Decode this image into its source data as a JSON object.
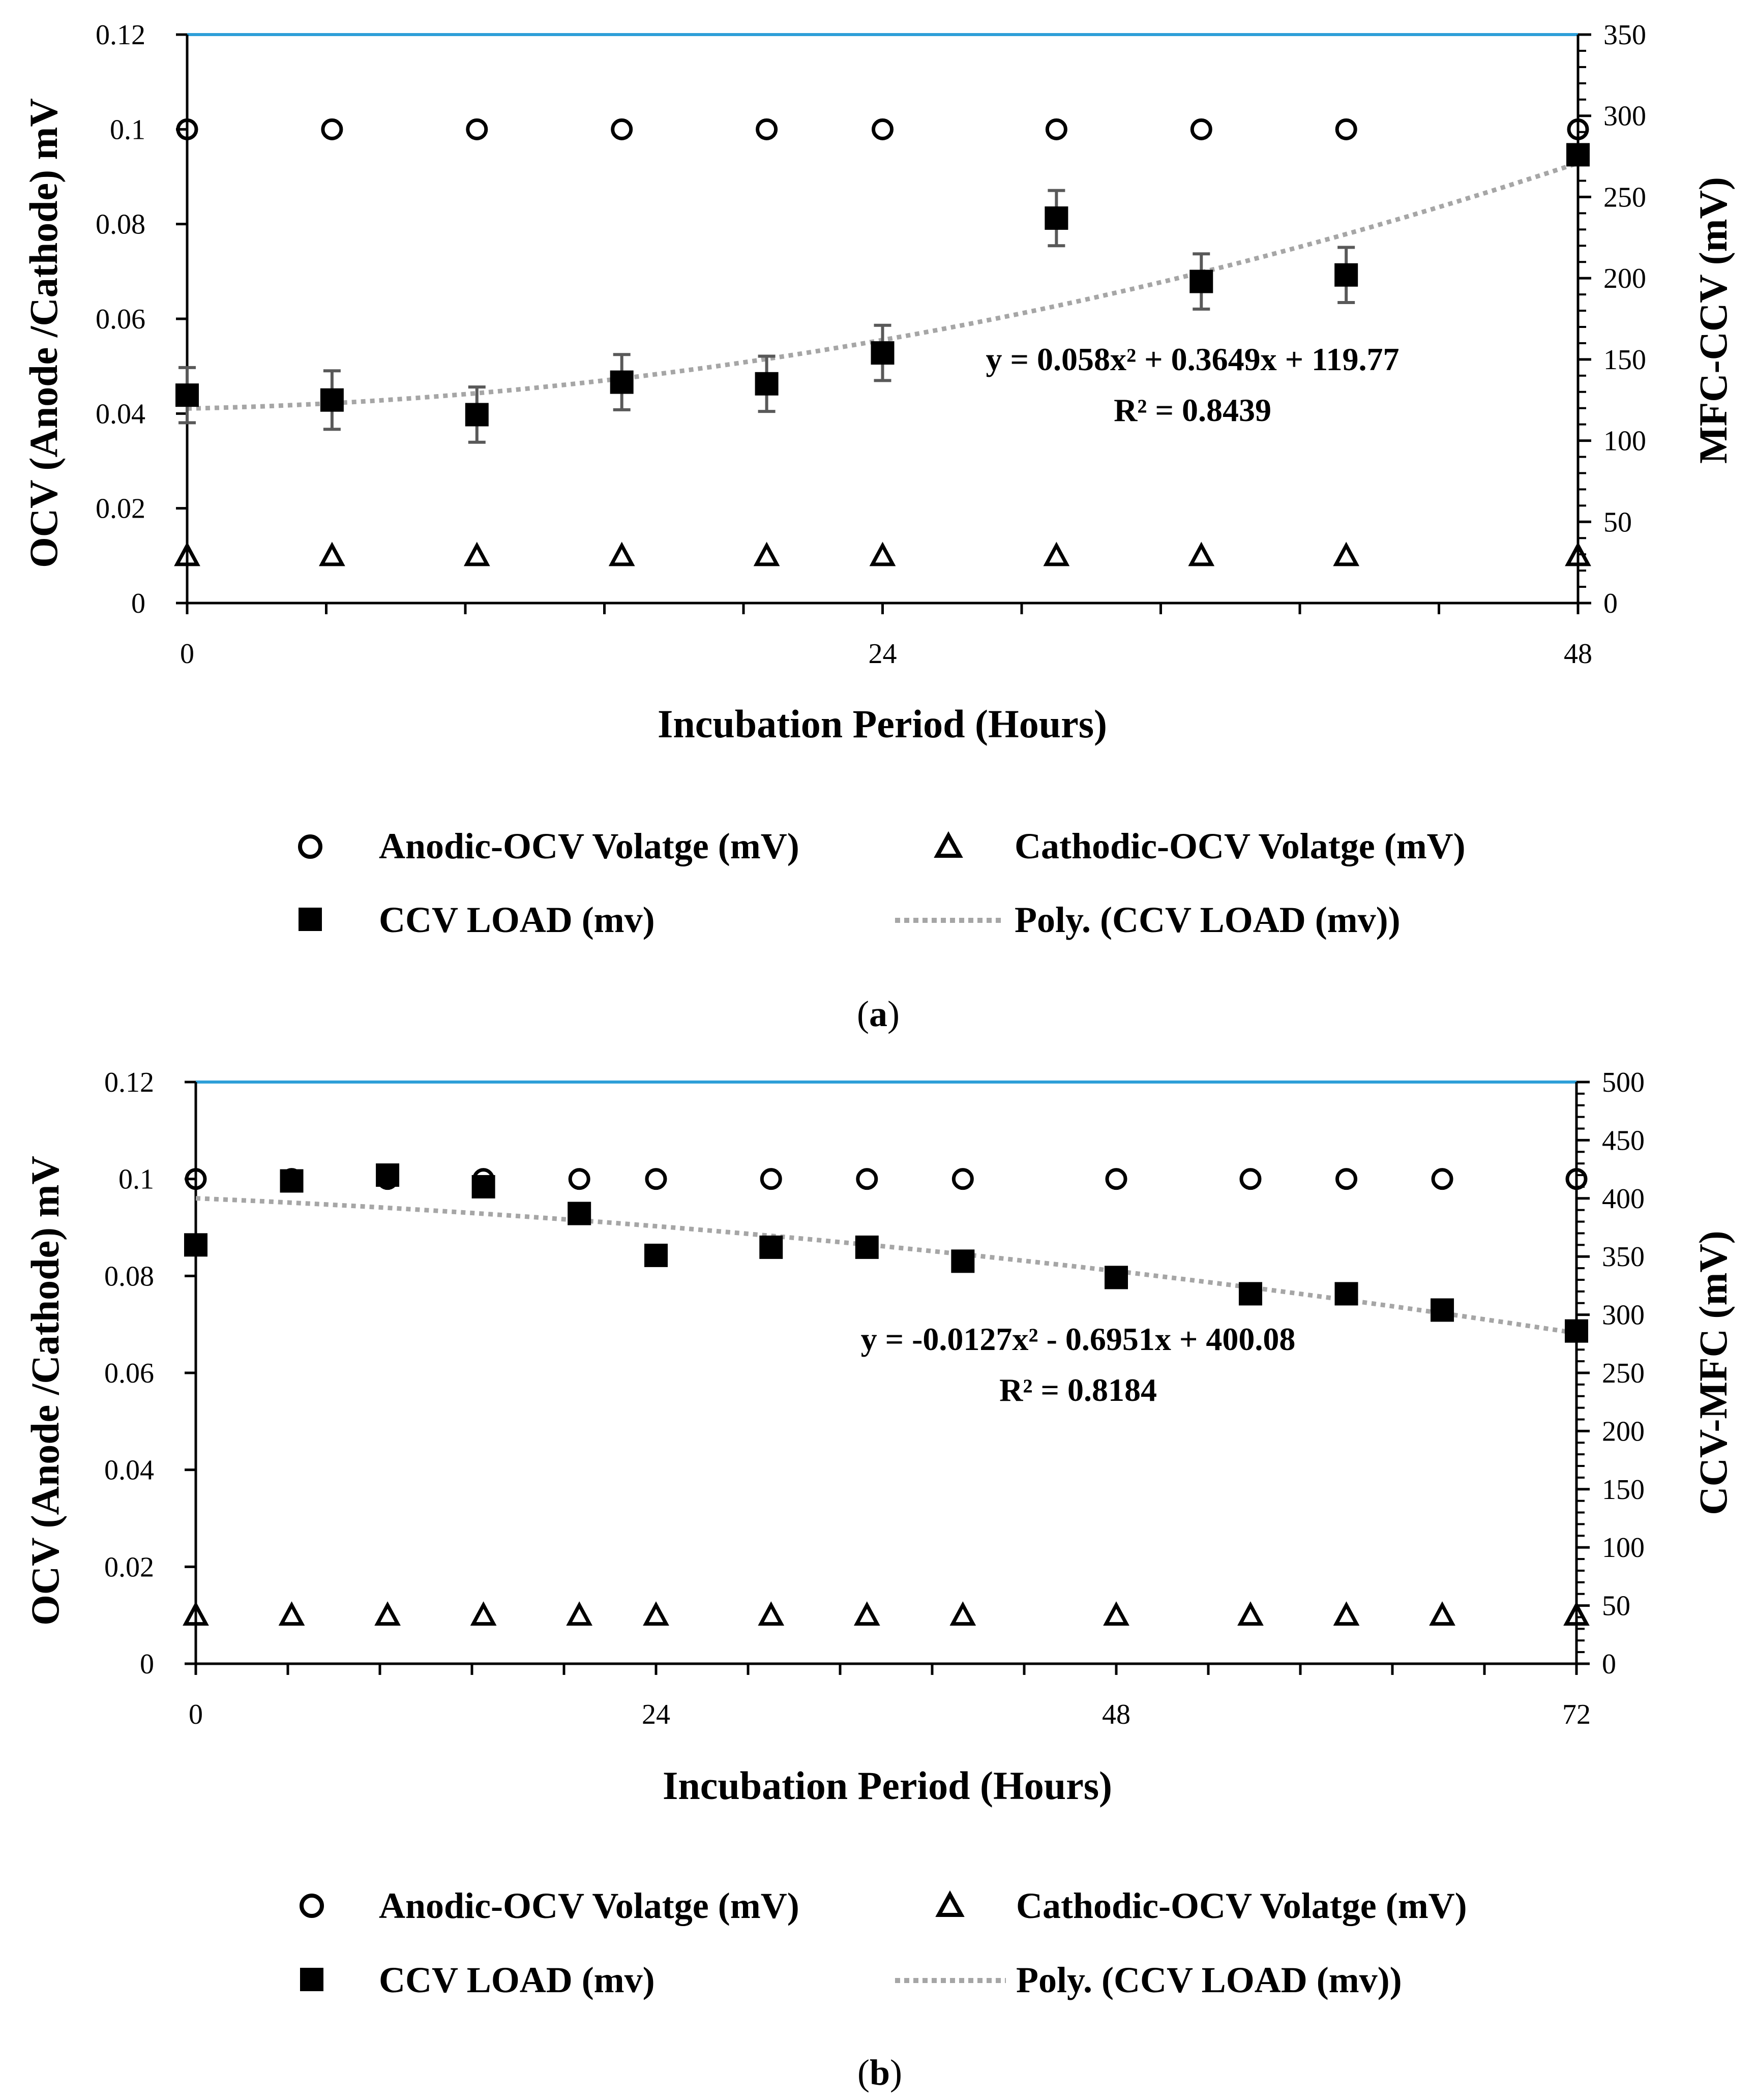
{
  "chart_data": [
    {
      "type": "scatter",
      "panel_label": "a",
      "xlabel": "Incubation Period (Hours)",
      "ylabel": "OCV (Anode /Cathode) mV",
      "y2label": "MFC-CCV (mV)",
      "xlim": [
        0,
        48
      ],
      "x_ticks": [
        0,
        24,
        48
      ],
      "ylim": [
        0,
        0.12
      ],
      "y_ticks": [
        0,
        0.02,
        0.04,
        0.06,
        0.08,
        0.1,
        0.12
      ],
      "y2lim": [
        0,
        350
      ],
      "y2_ticks": [
        0,
        50,
        100,
        150,
        200,
        250,
        300,
        350
      ],
      "x_minor_step": 4.8,
      "y2_minor_step": 10,
      "top_line_color": "#2E9FD8",
      "series": [
        {
          "name": "Anodic-OCV Volatge (mV)",
          "marker": "circle",
          "axis": "left",
          "x": [
            0,
            5,
            10,
            15,
            20,
            24,
            30,
            35,
            40,
            48
          ],
          "values": [
            0.1,
            0.1,
            0.1,
            0.1,
            0.1,
            0.1,
            0.1,
            0.1,
            0.1,
            0.1
          ]
        },
        {
          "name": "Cathodic-OCV Volatge (mV)",
          "marker": "triangle",
          "axis": "left",
          "x": [
            0,
            5,
            10,
            15,
            20,
            24,
            30,
            35,
            40,
            48
          ],
          "values": [
            0.01,
            0.01,
            0.01,
            0.01,
            0.01,
            0.01,
            0.01,
            0.01,
            0.01,
            0.01
          ]
        },
        {
          "name": "CCV LOAD (mv)",
          "marker": "square",
          "axis": "right",
          "x": [
            0,
            5,
            10,
            15,
            20,
            24,
            30,
            35,
            40,
            48
          ],
          "values": [
            128,
            125,
            116,
            136,
            135,
            154,
            237,
            198,
            202,
            276
          ],
          "errors": [
            17,
            18,
            17,
            17,
            17,
            17,
            17,
            17,
            17,
            0
          ]
        }
      ],
      "trendline": {
        "name": "Poly. (CCV LOAD (mv))",
        "axis": "right",
        "coefficients": [
          0.058,
          0.3649,
          119.77
        ],
        "equation": "y = 0.058x² + 0.3649x + 119.77",
        "r2": "R² = 0.8439",
        "color": "#A6A6A6"
      }
    },
    {
      "type": "scatter",
      "panel_label": "b",
      "xlabel": "Incubation Period (Hours)",
      "ylabel": "OCV (Anode /Cathode) mV",
      "y2label": "CCV-MFC (mV)",
      "xlim": [
        0,
        72
      ],
      "x_ticks": [
        0,
        24,
        48,
        72
      ],
      "ylim": [
        0,
        0.12
      ],
      "y_ticks": [
        0,
        0.02,
        0.04,
        0.06,
        0.08,
        0.1,
        0.12
      ],
      "y2lim": [
        0,
        500
      ],
      "y2_ticks": [
        0,
        50,
        100,
        150,
        200,
        250,
        300,
        350,
        400,
        450,
        500
      ],
      "x_minor_step": 4.8,
      "y2_minor_step": 10,
      "top_line_color": "#2E9FD8",
      "series": [
        {
          "name": "Anodic-OCV Volatge (mV)",
          "marker": "circle",
          "axis": "left",
          "x": [
            0,
            5,
            10,
            15,
            20,
            24,
            30,
            35,
            40,
            48,
            55,
            60,
            65,
            72
          ],
          "values": [
            0.1,
            0.1,
            0.1,
            0.1,
            0.1,
            0.1,
            0.1,
            0.1,
            0.1,
            0.1,
            0.1,
            0.1,
            0.1,
            0.1
          ]
        },
        {
          "name": "Cathodic-OCV Volatge (mV)",
          "marker": "triangle",
          "axis": "left",
          "x": [
            0,
            5,
            10,
            15,
            20,
            24,
            30,
            35,
            40,
            48,
            55,
            60,
            65,
            72
          ],
          "values": [
            0.01,
            0.01,
            0.01,
            0.01,
            0.01,
            0.01,
            0.01,
            0.01,
            0.01,
            0.01,
            0.01,
            0.01,
            0.01,
            0.01
          ]
        },
        {
          "name": "CCV LOAD (mv)",
          "marker": "square",
          "axis": "right",
          "x": [
            0,
            5,
            10,
            15,
            20,
            24,
            30,
            35,
            40,
            48,
            55,
            60,
            65,
            72
          ],
          "values": [
            360,
            415,
            420,
            410,
            387,
            351,
            358,
            358,
            346,
            332,
            318,
            318,
            304,
            286
          ],
          "errors": [
            6,
            6,
            6,
            6,
            6,
            6,
            6,
            6,
            6,
            6,
            6,
            6,
            6,
            6
          ]
        }
      ],
      "trendline": {
        "name": "Poly. (CCV LOAD (mv))",
        "axis": "right",
        "coefficients": [
          -0.0127,
          -0.6951,
          400.08
        ],
        "equation": "y = -0.0127x² - 0.6951x + 400.08",
        "r2": "R² = 0.8184",
        "color": "#A6A6A6"
      }
    }
  ]
}
